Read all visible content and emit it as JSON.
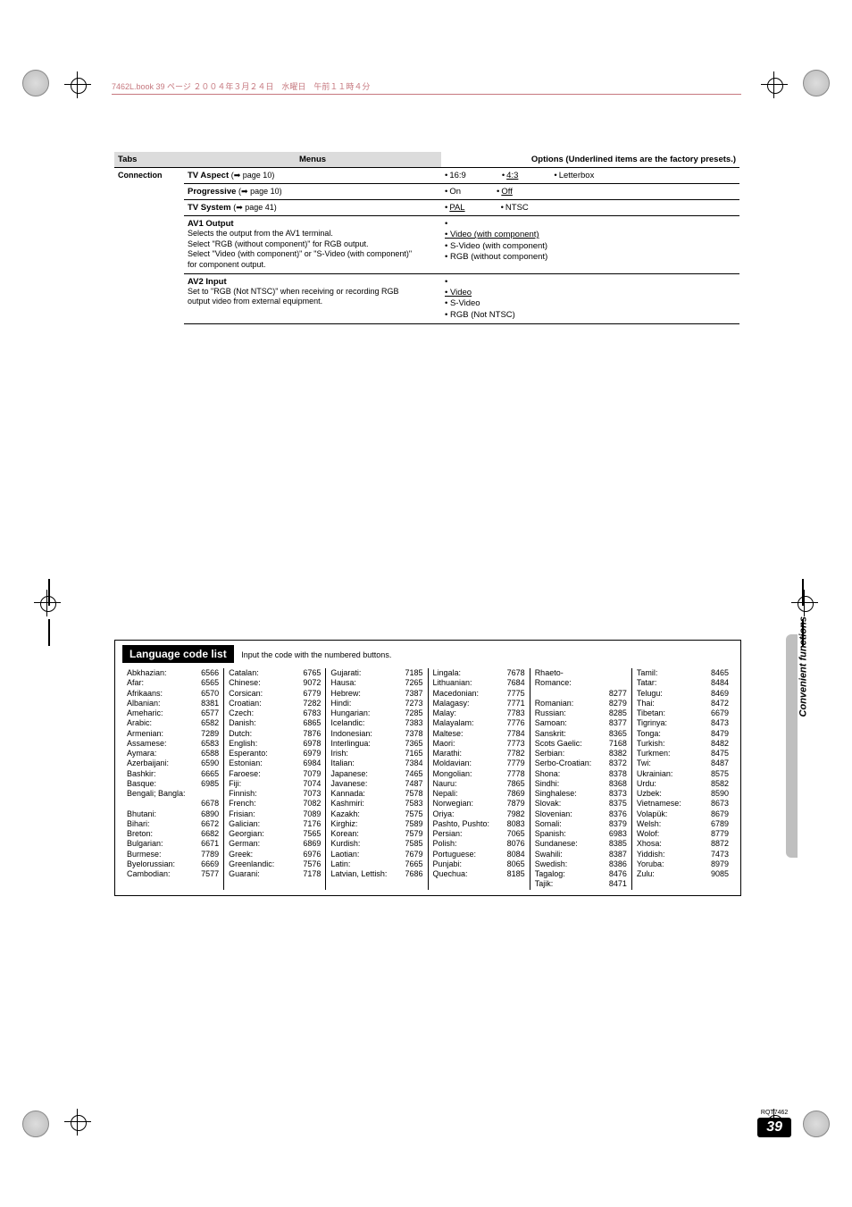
{
  "header_strip": "7462L.book  39 ページ  ２００４年３月２４日　水曜日　午前１１時４分",
  "headers": {
    "tabs": "Tabs",
    "menus": "Menus",
    "options": "Options (Underlined items are the factory presets.)"
  },
  "connection_label": "Connection",
  "settings": [
    {
      "title": "TV Aspect",
      "ref": "(➡ page 10)",
      "opts": [
        {
          "t": "16:9",
          "u": false
        },
        {
          "t": "4:3",
          "u": true
        },
        {
          "t": "Letterbox",
          "u": false
        }
      ]
    },
    {
      "title": "Progressive",
      "ref": "(➡ page 10)",
      "opts": [
        {
          "t": "On",
          "u": false
        },
        {
          "t": "Off",
          "u": true
        }
      ]
    },
    {
      "title": "TV System",
      "ref": "(➡ page 41)",
      "opts": [
        {
          "t": "PAL",
          "u": true
        },
        {
          "t": "NTSC",
          "u": false
        }
      ]
    }
  ],
  "av1": {
    "title": "AV1 Output",
    "lines": [
      "Selects the output from the AV1 terminal.",
      "Select \"RGB (without component)\" for RGB output.",
      "Select \"Video (with component)\" or \"S-Video (with component)\"",
      "for component output."
    ],
    "opts": [
      {
        "t": "Video (with component)",
        "u": true
      },
      {
        "t": "S-Video (with component)",
        "u": false
      },
      {
        "t": "RGB (without component)",
        "u": false
      }
    ]
  },
  "av2": {
    "title": "AV2 Input",
    "lines": [
      "Set to \"RGB (Not NTSC)\" when receiving or recording RGB",
      "output video from external equipment."
    ],
    "opts": [
      {
        "t": "Video",
        "u": true
      },
      {
        "t": "S-Video",
        "u": false
      },
      {
        "t": "RGB (Not NTSC)",
        "u": false
      }
    ]
  },
  "lang_title": "Language code list",
  "lang_subtitle": "Input the code with the numbered buttons.",
  "lang_cols": [
    [
      {
        "n": "Abkhazian:",
        "c": "6566"
      },
      {
        "n": "Afar:",
        "c": "6565"
      },
      {
        "n": "Afrikaans:",
        "c": "6570"
      },
      {
        "n": "Albanian:",
        "c": "8381"
      },
      {
        "n": "Ameharic:",
        "c": "6577"
      },
      {
        "n": "Arabic:",
        "c": "6582"
      },
      {
        "n": "Armenian:",
        "c": "7289"
      },
      {
        "n": "Assamese:",
        "c": "6583"
      },
      {
        "n": "Aymara:",
        "c": "6588"
      },
      {
        "n": "Azerbaijani:",
        "c": "6590"
      },
      {
        "n": "Bashkir:",
        "c": "6665"
      },
      {
        "n": "Basque:",
        "c": "6985"
      },
      {
        "n": "Bengali; Bangla:",
        "c": ""
      },
      {
        "n": "",
        "c": "6678"
      },
      {
        "n": "Bhutani:",
        "c": "6890"
      },
      {
        "n": "Bihari:",
        "c": "6672"
      },
      {
        "n": "Breton:",
        "c": "6682"
      },
      {
        "n": "Bulgarian:",
        "c": "6671"
      },
      {
        "n": "Burmese:",
        "c": "7789"
      },
      {
        "n": "Byelorussian:",
        "c": "6669"
      },
      {
        "n": "Cambodian:",
        "c": "7577"
      }
    ],
    [
      {
        "n": "Catalan:",
        "c": "6765"
      },
      {
        "n": "Chinese:",
        "c": "9072"
      },
      {
        "n": "Corsican:",
        "c": "6779"
      },
      {
        "n": "Croatian:",
        "c": "7282"
      },
      {
        "n": "Czech:",
        "c": "6783"
      },
      {
        "n": "Danish:",
        "c": "6865"
      },
      {
        "n": "Dutch:",
        "c": "7876"
      },
      {
        "n": "English:",
        "c": "6978"
      },
      {
        "n": "Esperanto:",
        "c": "6979"
      },
      {
        "n": "Estonian:",
        "c": "6984"
      },
      {
        "n": "Faroese:",
        "c": "7079"
      },
      {
        "n": "Fiji:",
        "c": "7074"
      },
      {
        "n": "Finnish:",
        "c": "7073"
      },
      {
        "n": "French:",
        "c": "7082"
      },
      {
        "n": "Frisian:",
        "c": "7089"
      },
      {
        "n": "Galician:",
        "c": "7176"
      },
      {
        "n": "Georgian:",
        "c": "7565"
      },
      {
        "n": "German:",
        "c": "6869"
      },
      {
        "n": "Greek:",
        "c": "6976"
      },
      {
        "n": "Greenlandic:",
        "c": "7576"
      },
      {
        "n": "Guarani:",
        "c": "7178"
      }
    ],
    [
      {
        "n": "Gujarati:",
        "c": "7185"
      },
      {
        "n": "Hausa:",
        "c": "7265"
      },
      {
        "n": "Hebrew:",
        "c": "7387"
      },
      {
        "n": "Hindi:",
        "c": "7273"
      },
      {
        "n": "Hungarian:",
        "c": "7285"
      },
      {
        "n": "Icelandic:",
        "c": "7383"
      },
      {
        "n": "Indonesian:",
        "c": "7378"
      },
      {
        "n": "Interlingua:",
        "c": "7365"
      },
      {
        "n": "Irish:",
        "c": "7165"
      },
      {
        "n": "Italian:",
        "c": "7384"
      },
      {
        "n": "Japanese:",
        "c": "7465"
      },
      {
        "n": "Javanese:",
        "c": "7487"
      },
      {
        "n": "Kannada:",
        "c": "7578"
      },
      {
        "n": "Kashmiri:",
        "c": "7583"
      },
      {
        "n": "Kazakh:",
        "c": "7575"
      },
      {
        "n": "Kirghiz:",
        "c": "7589"
      },
      {
        "n": "Korean:",
        "c": "7579"
      },
      {
        "n": "Kurdish:",
        "c": "7585"
      },
      {
        "n": "Laotian:",
        "c": "7679"
      },
      {
        "n": "Latin:",
        "c": "7665"
      },
      {
        "n": "Latvian, Lettish:",
        "c": "7686"
      }
    ],
    [
      {
        "n": "Lingala:",
        "c": "7678"
      },
      {
        "n": "Lithuanian:",
        "c": "7684"
      },
      {
        "n": "Macedonian:",
        "c": "7775"
      },
      {
        "n": "Malagasy:",
        "c": "7771"
      },
      {
        "n": "Malay:",
        "c": "7783"
      },
      {
        "n": "Malayalam:",
        "c": "7776"
      },
      {
        "n": "Maltese:",
        "c": "7784"
      },
      {
        "n": "Maori:",
        "c": "7773"
      },
      {
        "n": "Marathi:",
        "c": "7782"
      },
      {
        "n": "Moldavian:",
        "c": "7779"
      },
      {
        "n": "Mongolian:",
        "c": "7778"
      },
      {
        "n": "Nauru:",
        "c": "7865"
      },
      {
        "n": "Nepali:",
        "c": "7869"
      },
      {
        "n": "Norwegian:",
        "c": "7879"
      },
      {
        "n": "Oriya:",
        "c": "7982"
      },
      {
        "n": "Pashto, Pushto:",
        "c": "8083"
      },
      {
        "n": "Persian:",
        "c": "7065"
      },
      {
        "n": "Polish:",
        "c": "8076"
      },
      {
        "n": "Portuguese:",
        "c": "8084"
      },
      {
        "n": "Punjabi:",
        "c": "8065"
      },
      {
        "n": "Quechua:",
        "c": "8185"
      }
    ],
    [
      {
        "n": "Rhaeto-Romance:",
        "c": ""
      },
      {
        "n": "",
        "c": "8277"
      },
      {
        "n": "Romanian:",
        "c": "8279"
      },
      {
        "n": "Russian:",
        "c": "8285"
      },
      {
        "n": "Samoan:",
        "c": "8377"
      },
      {
        "n": "Sanskrit:",
        "c": "8365"
      },
      {
        "n": "Scots Gaelic:",
        "c": "7168"
      },
      {
        "n": "Serbian:",
        "c": "8382"
      },
      {
        "n": "Serbo-Croatian:",
        "c": "8372"
      },
      {
        "n": "Shona:",
        "c": "8378"
      },
      {
        "n": "Sindhi:",
        "c": "8368"
      },
      {
        "n": "Singhalese:",
        "c": "8373"
      },
      {
        "n": "Slovak:",
        "c": "8375"
      },
      {
        "n": "Slovenian:",
        "c": "8376"
      },
      {
        "n": "Somali:",
        "c": "8379"
      },
      {
        "n": "Spanish:",
        "c": "6983"
      },
      {
        "n": "Sundanese:",
        "c": "8385"
      },
      {
        "n": "Swahili:",
        "c": "8387"
      },
      {
        "n": "Swedish:",
        "c": "8386"
      },
      {
        "n": "Tagalog:",
        "c": "8476"
      },
      {
        "n": "Tajik:",
        "c": "8471"
      }
    ],
    [
      {
        "n": "Tamil:",
        "c": "8465"
      },
      {
        "n": "Tatar:",
        "c": "8484"
      },
      {
        "n": "Telugu:",
        "c": "8469"
      },
      {
        "n": "Thai:",
        "c": "8472"
      },
      {
        "n": "Tibetan:",
        "c": "6679"
      },
      {
        "n": "Tigrinya:",
        "c": "8473"
      },
      {
        "n": "Tonga:",
        "c": "8479"
      },
      {
        "n": "Turkish:",
        "c": "8482"
      },
      {
        "n": "Turkmen:",
        "c": "8475"
      },
      {
        "n": "Twi:",
        "c": "8487"
      },
      {
        "n": "Ukrainian:",
        "c": "8575"
      },
      {
        "n": "Urdu:",
        "c": "8582"
      },
      {
        "n": "Uzbek:",
        "c": "8590"
      },
      {
        "n": "Vietnamese:",
        "c": "8673"
      },
      {
        "n": "Volapük:",
        "c": "8679"
      },
      {
        "n": "Welsh:",
        "c": "6789"
      },
      {
        "n": "Wolof:",
        "c": "8779"
      },
      {
        "n": "Xhosa:",
        "c": "8872"
      },
      {
        "n": "Yiddish:",
        "c": "7473"
      },
      {
        "n": "Yoruba:",
        "c": "8979"
      },
      {
        "n": "Zulu:",
        "c": "9085"
      }
    ]
  ],
  "side_label": "Convenient functions",
  "rqt": "RQT7462",
  "page_num": "39"
}
